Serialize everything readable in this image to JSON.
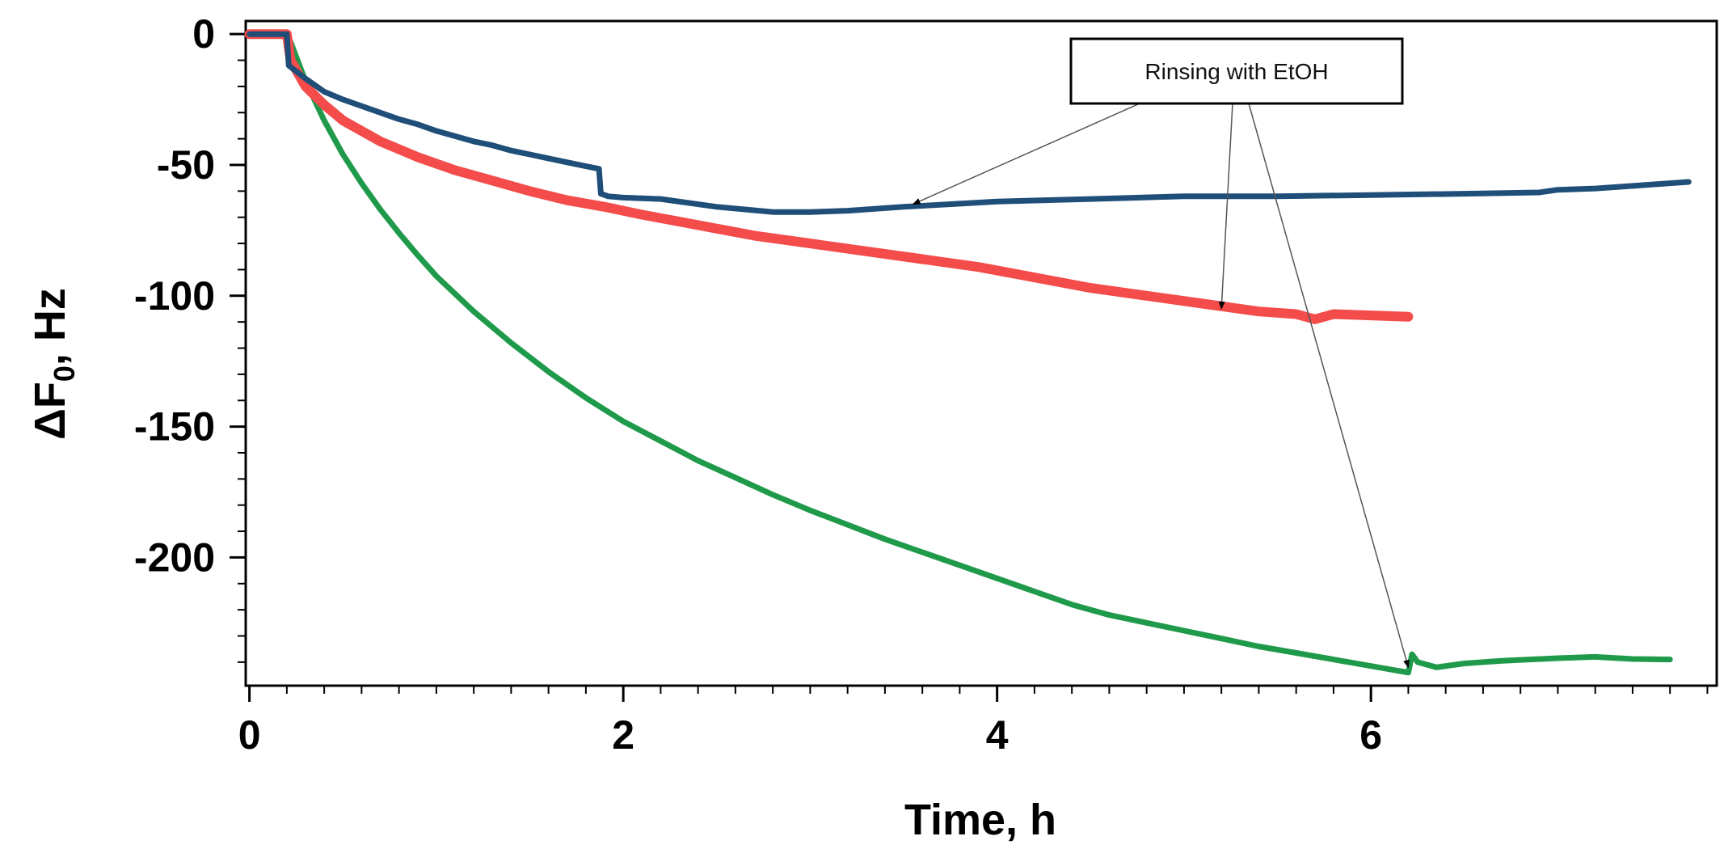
{
  "chart_data": {
    "type": "line",
    "title": "",
    "xlabel": "Time, h",
    "ylabel_main": "ΔF",
    "ylabel_sub": "0",
    "ylabel_rest": ", Hz",
    "xlim": [
      -0.02,
      7.85
    ],
    "ylim": [
      -249,
      5
    ],
    "x_ticks": [
      0,
      2,
      4,
      6
    ],
    "x_tick_labels": [
      "0",
      "2",
      "4",
      "6"
    ],
    "y_ticks": [
      0,
      -50,
      -100,
      -150,
      -200
    ],
    "y_tick_labels": [
      "0",
      "-50",
      "-100",
      "-150",
      "-200"
    ],
    "grid": false,
    "annotation": {
      "text": "Rinsing with EtOH",
      "targets": [
        [
          3.55,
          -65
        ],
        [
          5.2,
          -105
        ],
        [
          6.2,
          -242
        ]
      ]
    },
    "series": [
      {
        "name": "dark blue",
        "color": "#1f4e79",
        "x": [
          0,
          0.2,
          0.21,
          0.3,
          0.4,
          0.5,
          0.6,
          0.7,
          0.8,
          0.9,
          1.0,
          1.1,
          1.2,
          1.3,
          1.4,
          1.5,
          1.6,
          1.7,
          1.8,
          1.87,
          1.88,
          1.92,
          2.0,
          2.2,
          2.5,
          2.8,
          3.0,
          3.2,
          3.5,
          4.0,
          4.5,
          5.0,
          5.5,
          6.0,
          6.5,
          6.9,
          7.0,
          7.2,
          7.5,
          7.7
        ],
        "y": [
          0,
          0,
          -12,
          -17,
          -22,
          -25,
          -27.5,
          -30,
          -32.5,
          -34.5,
          -37,
          -39,
          -41,
          -42.5,
          -44.5,
          -46,
          -47.5,
          -49,
          -50.5,
          -51.5,
          -61,
          -62,
          -62.5,
          -63,
          -66,
          -68,
          -68,
          -67.5,
          -66,
          -64,
          -63,
          -62,
          -62,
          -61.5,
          -61,
          -60.5,
          -59.5,
          -59,
          -57.5,
          -56.5
        ]
      },
      {
        "name": "red",
        "color": "#f44b4b",
        "x": [
          0,
          0.2,
          0.22,
          0.3,
          0.4,
          0.5,
          0.7,
          0.9,
          1.1,
          1.3,
          1.5,
          1.7,
          1.9,
          2.1,
          2.4,
          2.7,
          3.0,
          3.3,
          3.6,
          3.9,
          4.2,
          4.5,
          4.8,
          5.1,
          5.4,
          5.6,
          5.7,
          5.8,
          6.0,
          6.2
        ],
        "y": [
          0,
          0,
          -10,
          -20,
          -27,
          -33,
          -41,
          -47,
          -52,
          -56,
          -60,
          -63.5,
          -66,
          -69,
          -73,
          -77,
          -80,
          -83,
          -86,
          -89,
          -93,
          -97,
          -100,
          -103,
          -106,
          -107,
          -109,
          -107,
          -107.5,
          -108
        ]
      },
      {
        "name": "green",
        "color": "#1f9a4a",
        "x": [
          0,
          0.2,
          0.22,
          0.3,
          0.4,
          0.5,
          0.6,
          0.7,
          0.8,
          0.9,
          1.0,
          1.2,
          1.4,
          1.6,
          1.8,
          2.0,
          2.2,
          2.4,
          2.6,
          2.8,
          3.0,
          3.2,
          3.4,
          3.6,
          3.8,
          4.0,
          4.2,
          4.4,
          4.6,
          4.8,
          5.0,
          5.2,
          5.4,
          5.6,
          5.8,
          6.0,
          6.2,
          6.22,
          6.25,
          6.35,
          6.5,
          6.7,
          7.0,
          7.2,
          7.4,
          7.6
        ],
        "y": [
          0,
          0,
          -3,
          -18,
          -33,
          -46,
          -57,
          -67,
          -76,
          -84.5,
          -92.5,
          -106,
          -118,
          -129,
          -139,
          -148,
          -155.5,
          -163,
          -169.5,
          -176,
          -182,
          -187.5,
          -193,
          -198,
          -203,
          -208,
          -213,
          -218,
          -222,
          -225,
          -228,
          -231,
          -234,
          -236.5,
          -239,
          -241.5,
          -244,
          -237,
          -240,
          -242,
          -240.5,
          -239.5,
          -238.5,
          -238,
          -238.8,
          -239
        ]
      }
    ]
  }
}
